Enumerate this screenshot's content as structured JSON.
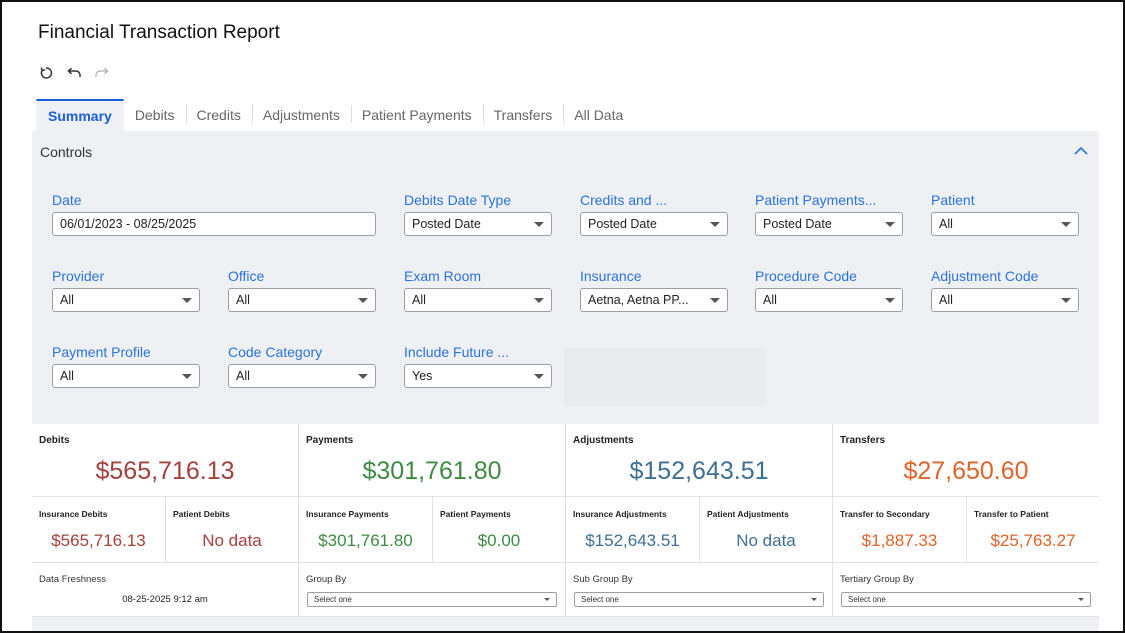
{
  "report": {
    "title": "Financial Transaction Report"
  },
  "history": {
    "refresh_icon": "refresh-icon",
    "undo_icon": "undo-icon",
    "redo_icon": "redo-icon"
  },
  "tabs": [
    {
      "label": "Summary",
      "active": true
    },
    {
      "label": "Debits",
      "active": false
    },
    {
      "label": "Credits",
      "active": false
    },
    {
      "label": "Adjustments",
      "active": false
    },
    {
      "label": "Patient Payments",
      "active": false
    },
    {
      "label": "Transfers",
      "active": false
    },
    {
      "label": "All Data",
      "active": false
    }
  ],
  "controls": {
    "heading": "Controls",
    "collapse_icon": "chevron-up-icon",
    "filters": {
      "date": {
        "label": "Date",
        "value": "06/01/2023 - 08/25/2025"
      },
      "debits_date_type": {
        "label": "Debits Date Type",
        "value": "Posted Date"
      },
      "credits_date_type": {
        "label": "Credits and ...",
        "value": "Posted Date"
      },
      "patient_payments": {
        "label": "Patient Payments...",
        "value": "Posted Date"
      },
      "patient": {
        "label": "Patient",
        "value": "All"
      },
      "provider": {
        "label": "Provider",
        "value": "All"
      },
      "office": {
        "label": "Office",
        "value": "All"
      },
      "exam_room": {
        "label": "Exam Room",
        "value": "All"
      },
      "insurance": {
        "label": "Insurance",
        "value": "Aetna, Aetna PP..."
      },
      "procedure_code": {
        "label": "Procedure Code",
        "value": "All"
      },
      "adjustment_code": {
        "label": "Adjustment Code",
        "value": "All"
      },
      "payment_profile": {
        "label": "Payment Profile",
        "value": "All"
      },
      "code_category": {
        "label": "Code Category",
        "value": "All"
      },
      "include_future": {
        "label": "Include Future ...",
        "value": "Yes"
      }
    }
  },
  "summary": {
    "debits": {
      "label": "Debits",
      "value": "$565,716.13",
      "color": "#a3413c"
    },
    "payments": {
      "label": "Payments",
      "value": "$301,761.80",
      "color": "#3f8a44"
    },
    "adjustments": {
      "label": "Adjustments",
      "value": "$152,643.51",
      "color": "#3d6f93"
    },
    "transfers": {
      "label": "Transfers",
      "value": "$27,650.60",
      "color": "#e0632a"
    },
    "insurance_debits": {
      "label": "Insurance Debits",
      "value": "$565,716.13"
    },
    "patient_debits": {
      "label": "Patient Debits",
      "value": "No data"
    },
    "insurance_payments": {
      "label": "Insurance Payments",
      "value": "$301,761.80"
    },
    "patient_payments": {
      "label": "Patient Payments",
      "value": "$0.00"
    },
    "insurance_adjustments": {
      "label": "Insurance Adjustments",
      "value": "$152,643.51"
    },
    "patient_adjustments": {
      "label": "Patient Adjustments",
      "value": "No data"
    },
    "transfer_secondary": {
      "label": "Transfer to Secondary",
      "value": "$1,887.33"
    },
    "transfer_patient": {
      "label": "Transfer to Patient",
      "value": "$25,763.27"
    }
  },
  "footer": {
    "freshness": {
      "label": "Data Freshness",
      "value": "08-25-2025 9:12 am"
    },
    "group_by": {
      "label": "Group By",
      "value": "Select one"
    },
    "sub_group_by": {
      "label": "Sub Group By",
      "value": "Select one"
    },
    "tertiary_group_by": {
      "label": "Tertiary Group By",
      "value": "Select one"
    }
  }
}
